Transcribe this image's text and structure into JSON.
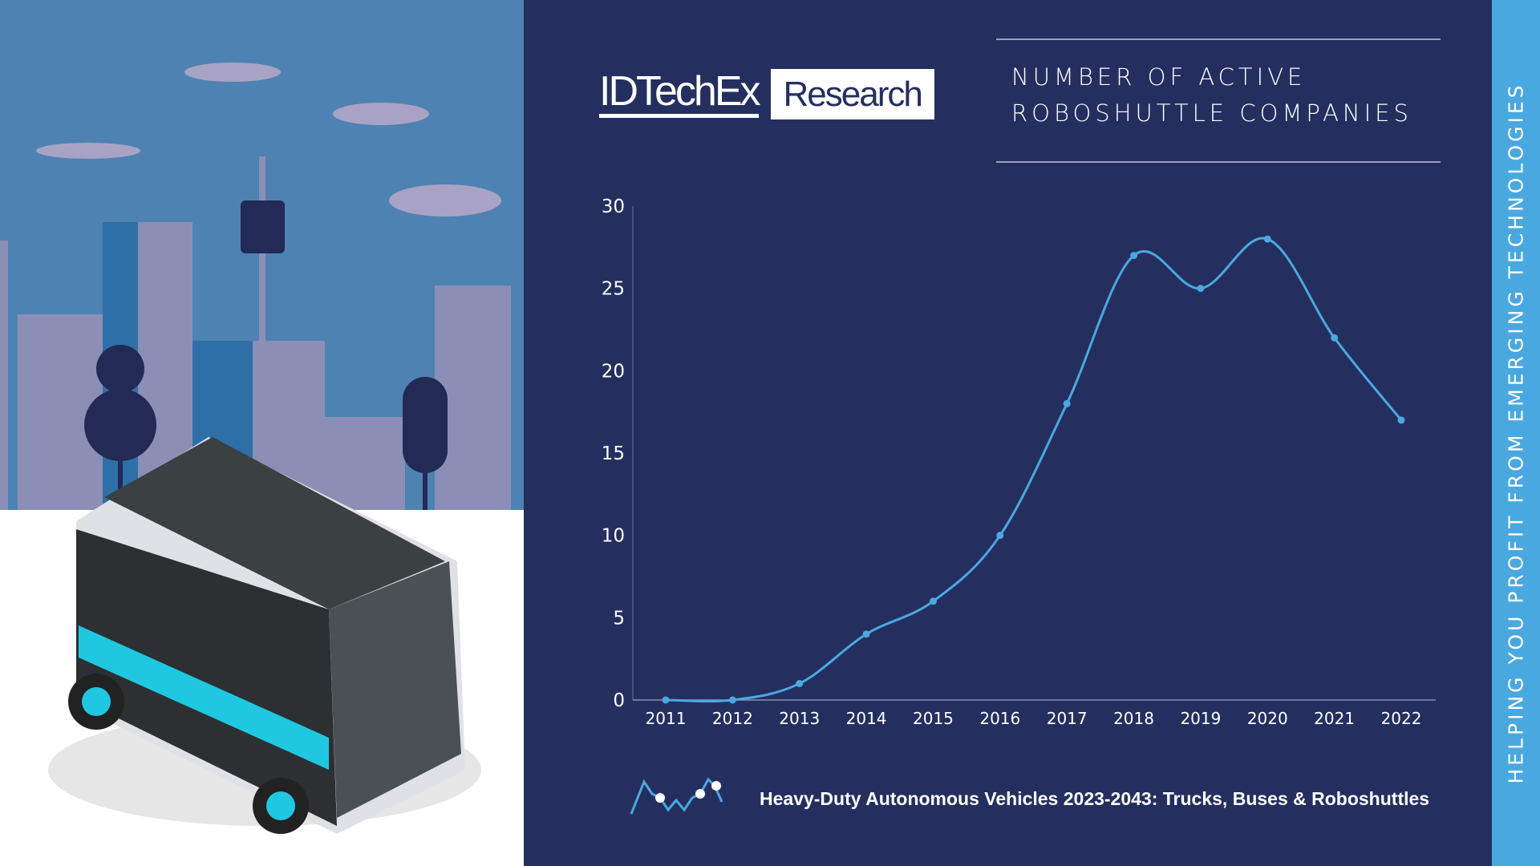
{
  "brand": {
    "logo_main": "IDTechEx",
    "logo_box": "Research"
  },
  "title_lines": [
    "NUMBER OF ACTIVE",
    "ROBOSHUTTLE COMPANIES"
  ],
  "side_tagline": "HELPING YOU PROFIT FROM EMERGING TECHNOLOGIES",
  "footer": {
    "report_title": "Heavy-Duty Autonomous Vehicles 2023-2043: Trucks, Buses & Roboshuttles",
    "icon": "line-chart-icon"
  },
  "colors": {
    "background": "#252f5f",
    "line": "#4aa8e0",
    "stripe": "#4aa8e0"
  },
  "chart_data": {
    "type": "line",
    "title": "NUMBER OF ACTIVE ROBOSHUTTLE COMPANIES",
    "categories": [
      "2011",
      "2012",
      "2013",
      "2014",
      "2015",
      "2016",
      "2017",
      "2018",
      "2019",
      "2020",
      "2021",
      "2022"
    ],
    "values": [
      0,
      0,
      1,
      4,
      6,
      10,
      18,
      27,
      25,
      28,
      22,
      17
    ],
    "ylim": [
      0,
      30
    ],
    "yticks": [
      0,
      5,
      10,
      15,
      20,
      25,
      30
    ],
    "smooth": true,
    "grid": false,
    "legend": "none"
  }
}
